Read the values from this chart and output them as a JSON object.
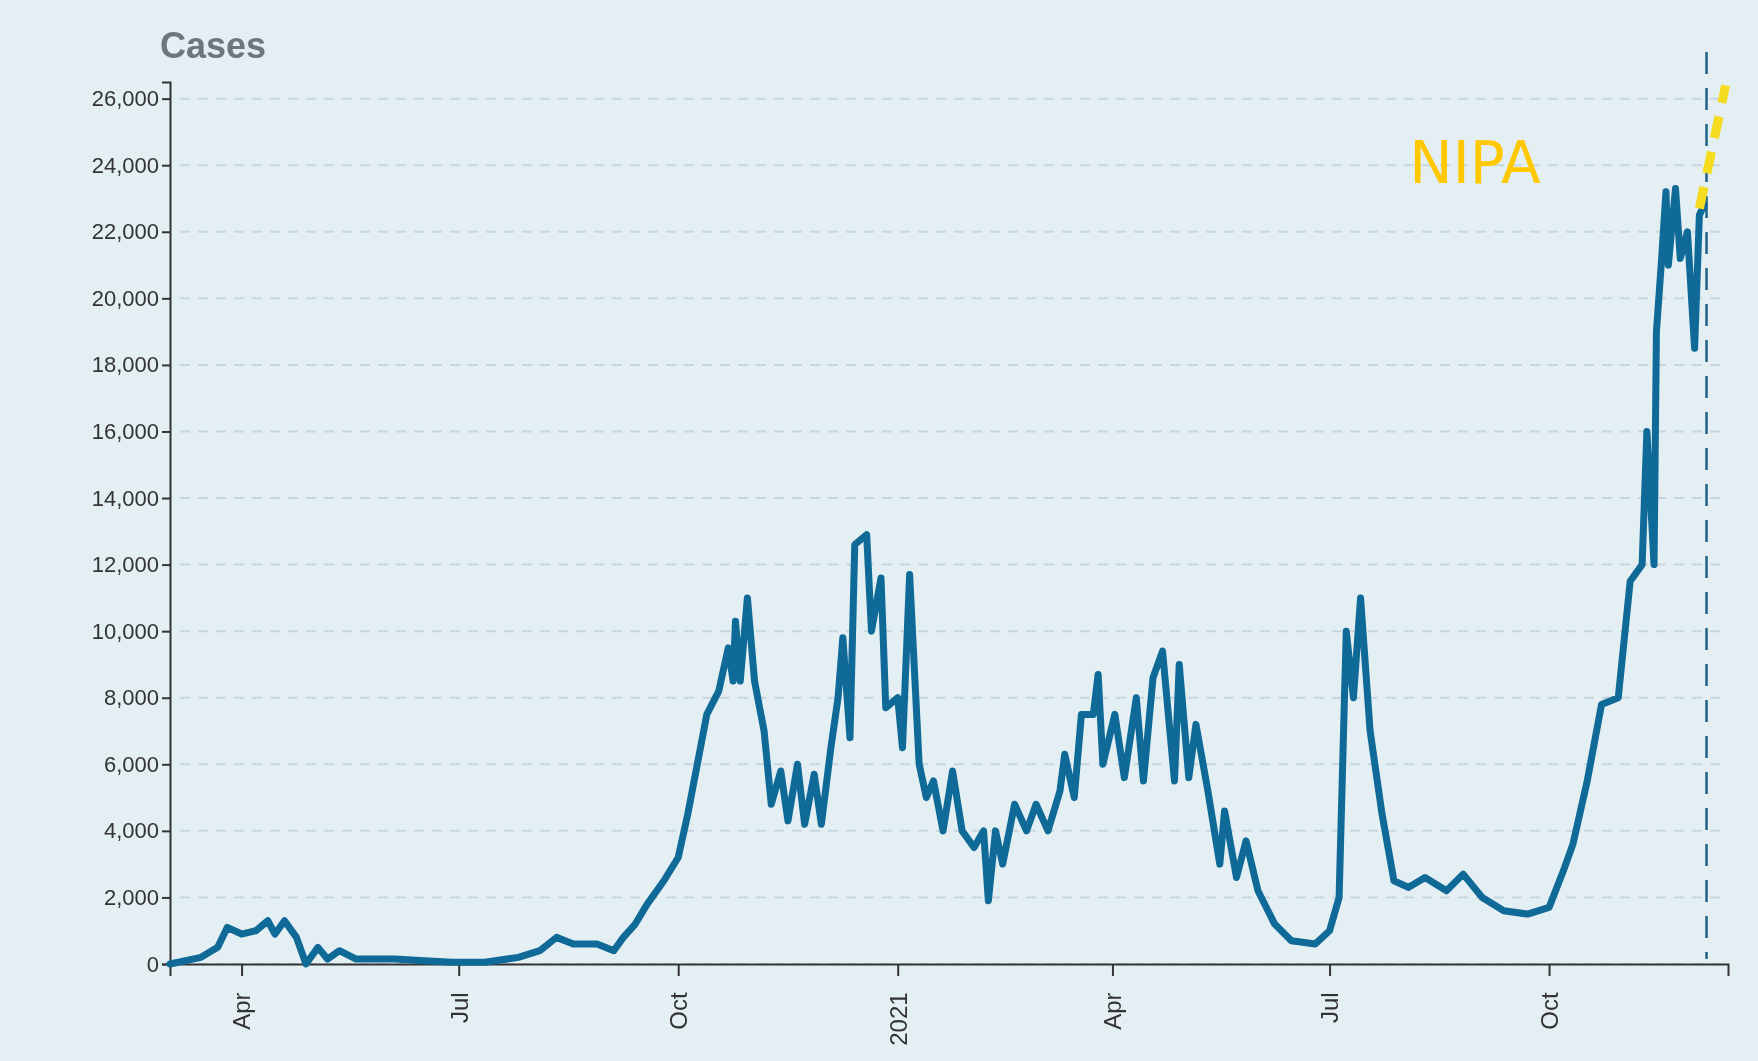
{
  "chart_data": {
    "type": "line",
    "title": "Cases",
    "xlim": [
      "2020-03-02",
      "2021-12-15"
    ],
    "ylim": [
      0,
      26500
    ],
    "xticks": [
      {
        "value": "2020-04-01",
        "label": "Apr"
      },
      {
        "value": "2020-07-01",
        "label": "Jul"
      },
      {
        "value": "2020-10-01",
        "label": "Oct"
      },
      {
        "value": "2021-01-01",
        "label": "2021"
      },
      {
        "value": "2021-04-01",
        "label": "Apr"
      },
      {
        "value": "2021-07-01",
        "label": "Jul"
      },
      {
        "value": "2021-10-01",
        "label": "Oct"
      }
    ],
    "yticks": [
      {
        "value": 0,
        "label": "0"
      },
      {
        "value": 2000,
        "label": "2,000"
      },
      {
        "value": 4000,
        "label": "4,000"
      },
      {
        "value": 6000,
        "label": "6,000"
      },
      {
        "value": 8000,
        "label": "8,000"
      },
      {
        "value": 10000,
        "label": "10,000"
      },
      {
        "value": 12000,
        "label": "12,000"
      },
      {
        "value": 14000,
        "label": "14,000"
      },
      {
        "value": 16000,
        "label": "16,000"
      },
      {
        "value": 18000,
        "label": "18,000"
      },
      {
        "value": 20000,
        "label": "20,000"
      },
      {
        "value": 22000,
        "label": "22,000"
      },
      {
        "value": 24000,
        "label": "24,000"
      },
      {
        "value": 26000,
        "label": "26,000"
      }
    ],
    "grid": "y",
    "marker": "none",
    "ref_lines": [
      {
        "axis": "x",
        "value": "2021-12-06",
        "color": "#1f6288",
        "line_style": "dashed"
      }
    ],
    "annotations": [
      "NIPA"
    ],
    "series": [
      {
        "color": "#0f6a97",
        "line_style": "solid",
        "x": [
          "2020-03-02",
          "2020-03-15",
          "2020-03-22",
          "2020-03-26",
          "2020-04-01",
          "2020-04-07",
          "2020-04-12",
          "2020-04-15",
          "2020-04-19",
          "2020-04-24",
          "2020-04-28",
          "2020-05-03",
          "2020-05-07",
          "2020-05-12",
          "2020-05-19",
          "2020-06-04",
          "2020-06-28",
          "2020-07-12",
          "2020-07-26",
          "2020-08-04",
          "2020-08-11",
          "2020-08-18",
          "2020-08-28",
          "2020-09-04",
          "2020-09-08",
          "2020-09-13",
          "2020-09-18",
          "2020-09-25",
          "2020-10-01",
          "2020-10-05",
          "2020-10-09",
          "2020-10-13",
          "2020-10-18",
          "2020-10-22",
          "2020-10-24",
          "2020-10-25",
          "2020-10-27",
          "2020-10-30",
          "2020-11-02",
          "2020-11-06",
          "2020-11-09",
          "2020-11-13",
          "2020-11-16",
          "2020-11-20",
          "2020-11-23",
          "2020-11-27",
          "2020-11-30",
          "2020-12-04",
          "2020-12-07",
          "2020-12-09",
          "2020-12-12",
          "2020-12-14",
          "2020-12-19",
          "2020-12-21",
          "2020-12-25",
          "2020-12-27",
          "2021-01-01",
          "2021-01-03",
          "2021-01-06",
          "2021-01-10",
          "2021-01-13",
          "2021-01-16",
          "2021-01-20",
          "2021-01-24",
          "2021-01-28",
          "2021-02-02",
          "2021-02-06",
          "2021-02-08",
          "2021-02-11",
          "2021-02-14",
          "2021-02-19",
          "2021-02-24",
          "2021-02-28",
          "2021-03-05",
          "2021-03-10",
          "2021-03-12",
          "2021-03-16",
          "2021-03-19",
          "2021-03-24",
          "2021-03-26",
          "2021-03-28",
          "2021-04-02",
          "2021-04-06",
          "2021-04-11",
          "2021-04-14",
          "2021-04-18",
          "2021-04-22",
          "2021-04-27",
          "2021-04-29",
          "2021-05-03",
          "2021-05-06",
          "2021-05-11",
          "2021-05-16",
          "2021-05-18",
          "2021-05-23",
          "2021-05-27",
          "2021-06-01",
          "2021-06-08",
          "2021-06-15",
          "2021-06-25",
          "2021-07-01",
          "2021-07-05",
          "2021-07-08",
          "2021-07-11",
          "2021-07-14",
          "2021-07-18",
          "2021-07-23",
          "2021-07-28",
          "2021-08-03",
          "2021-08-10",
          "2021-08-19",
          "2021-08-26",
          "2021-09-03",
          "2021-09-12",
          "2021-09-22",
          "2021-10-01",
          "2021-10-07",
          "2021-10-11",
          "2021-10-17",
          "2021-10-23",
          "2021-10-30",
          "2021-11-04",
          "2021-11-09",
          "2021-11-11",
          "2021-11-14",
          "2021-11-15",
          "2021-11-17",
          "2021-11-19",
          "2021-11-20",
          "2021-11-23",
          "2021-11-25",
          "2021-11-28",
          "2021-12-01",
          "2021-12-03",
          "2021-12-05"
        ],
        "values": [
          0,
          200,
          500,
          1100,
          900,
          1000,
          1300,
          900,
          1300,
          800,
          0,
          500,
          150,
          400,
          150,
          150,
          50,
          50,
          200,
          400,
          800,
          600,
          600,
          400,
          800,
          1200,
          1800,
          2500,
          3200,
          4500,
          6000,
          7500,
          8200,
          9500,
          8500,
          10300,
          8500,
          11000,
          8500,
          7000,
          4800,
          5800,
          4300,
          6000,
          4200,
          5700,
          4200,
          6500,
          8000,
          9800,
          6800,
          12600,
          12900,
          10000,
          11600,
          7700,
          8000,
          6500,
          11700,
          6000,
          5000,
          5500,
          4000,
          5800,
          4000,
          3500,
          4000,
          1900,
          4000,
          3000,
          4800,
          4000,
          4800,
          4000,
          5200,
          6300,
          5000,
          7500,
          7500,
          8700,
          6000,
          7500,
          5600,
          8000,
          5500,
          8600,
          9400,
          5500,
          9000,
          5600,
          7200,
          5200,
          3000,
          4600,
          2600,
          3700,
          2200,
          1200,
          700,
          600,
          1000,
          2000,
          10000,
          8000,
          11000,
          7000,
          4500,
          2500,
          2300,
          2600,
          2200,
          2700,
          2000,
          1600,
          1500,
          1700,
          2800,
          3600,
          5500,
          7800,
          8000,
          11500,
          12000,
          16000,
          12000,
          19000,
          21000,
          23200,
          21000,
          23300,
          21200,
          22000,
          18500,
          22500,
          22800
        ]
      },
      {
        "color": "#f5dc1e",
        "line_style": "dashed",
        "x": [
          "2021-12-03",
          "2021-12-14"
        ],
        "values": [
          22700,
          26400
        ]
      }
    ]
  }
}
